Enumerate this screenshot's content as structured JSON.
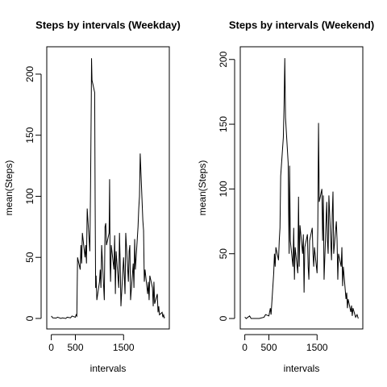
{
  "chart_data": [
    {
      "type": "line",
      "title": "Steps by intervals (Weekday)",
      "x_label": "intervals",
      "y_label": "mean(Steps)",
      "xlim": [
        -94.2,
        2449.2
      ],
      "xticks": [
        0,
        500,
        1500
      ],
      "ylim": [
        -8.6,
        222.4
      ],
      "yticks": [
        0,
        50,
        100,
        150,
        200
      ],
      "x": [
        0,
        30,
        100,
        130,
        200,
        230,
        300,
        330,
        400,
        430,
        500,
        515,
        530,
        545,
        600,
        615,
        630,
        645,
        700,
        715,
        730,
        745,
        800,
        815,
        830,
        835,
        845,
        900,
        910,
        920,
        930,
        945,
        1000,
        1015,
        1030,
        1045,
        1100,
        1115,
        1130,
        1145,
        1200,
        1210,
        1220,
        1230,
        1245,
        1300,
        1315,
        1330,
        1345,
        1400,
        1415,
        1430,
        1445,
        1500,
        1515,
        1530,
        1545,
        1600,
        1615,
        1630,
        1645,
        1700,
        1715,
        1730,
        1745,
        1800,
        1815,
        1830,
        1845,
        1900,
        1915,
        1930,
        1945,
        2000,
        2015,
        2030,
        2045,
        2100,
        2115,
        2130,
        2145,
        2200,
        2215,
        2230,
        2245,
        2300,
        2315,
        2330,
        2345,
        2355
      ],
      "series": [
        {
          "name": "Weekday",
          "color": "#000000",
          "values": [
            2,
            0.5,
            0.3,
            1,
            0,
            0.5,
            0,
            1,
            0.5,
            2,
            1,
            3,
            2,
            50,
            40,
            60,
            45,
            70,
            50,
            60,
            45,
            90,
            55,
            110,
            180,
            213,
            195,
            185,
            95,
            25,
            35,
            15,
            30,
            40,
            25,
            60,
            15,
            75,
            78,
            60,
            70,
            114,
            45,
            30,
            60,
            40,
            68,
            20,
            55,
            25,
            70,
            45,
            10,
            50,
            35,
            20,
            70,
            30,
            55,
            60,
            15,
            45,
            25,
            65,
            40,
            75,
            90,
            100,
            135,
            80,
            72,
            30,
            40,
            20,
            30,
            15,
            35,
            25,
            10,
            30,
            12,
            20,
            5,
            10,
            3,
            5,
            1,
            3,
            0.5,
            1
          ]
        }
      ]
    },
    {
      "type": "line",
      "title": "Steps by intervals (Weekend)",
      "x_label": "intervals",
      "y_label": "mean(Steps)",
      "xlim": [
        -94.2,
        2449.2
      ],
      "xticks": [
        0,
        500,
        1500
      ],
      "ylim": [
        -8.07,
        209.8
      ],
      "yticks": [
        0,
        50,
        100,
        150,
        200
      ],
      "x": [
        0,
        30,
        100,
        130,
        200,
        300,
        400,
        430,
        500,
        530,
        545,
        600,
        615,
        630,
        645,
        700,
        715,
        730,
        745,
        800,
        815,
        830,
        845,
        900,
        910,
        920,
        930,
        945,
        1000,
        1015,
        1030,
        1045,
        1100,
        1115,
        1130,
        1145,
        1200,
        1215,
        1230,
        1245,
        1300,
        1315,
        1330,
        1345,
        1400,
        1415,
        1430,
        1445,
        1500,
        1515,
        1530,
        1545,
        1600,
        1615,
        1630,
        1645,
        1700,
        1715,
        1730,
        1745,
        1800,
        1815,
        1830,
        1845,
        1900,
        1915,
        1930,
        1945,
        2000,
        2015,
        2030,
        2045,
        2100,
        2115,
        2130,
        2145,
        2200,
        2215,
        2230,
        2245,
        2300,
        2330,
        2355
      ],
      "series": [
        {
          "name": "Weekend",
          "color": "#000000",
          "values": [
            1,
            0,
            2,
            0,
            0,
            0,
            1,
            3,
            2,
            8,
            3,
            35,
            50,
            40,
            55,
            45,
            60,
            70,
            110,
            140,
            165,
            201,
            155,
            120,
            80,
            50,
            118,
            60,
            40,
            70,
            30,
            55,
            35,
            94,
            40,
            72,
            50,
            65,
            20,
            55,
            65,
            40,
            30,
            60,
            70,
            50,
            40,
            55,
            35,
            70,
            151,
            90,
            100,
            60,
            95,
            30,
            90,
            60,
            50,
            95,
            45,
            80,
            98,
            50,
            75,
            60,
            30,
            50,
            40,
            55,
            25,
            40,
            15,
            20,
            8,
            15,
            5,
            10,
            2,
            8,
            1,
            3,
            0
          ]
        }
      ]
    }
  ]
}
